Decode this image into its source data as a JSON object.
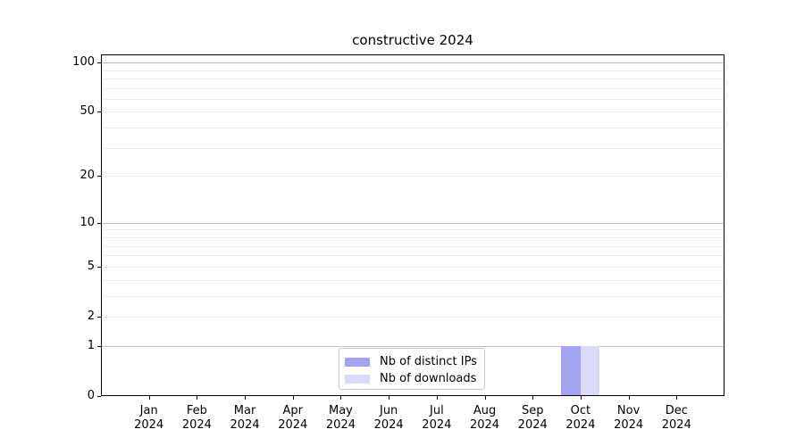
{
  "title": "constructive 2024",
  "colors": {
    "background": "#ffffff",
    "axis": "#000000",
    "grid_major": "#c2c2c2",
    "grid_minor": "#ebebeb",
    "legend_border": "#c9c9c9",
    "bar_distinct_ips": "#a4a4f3",
    "bar_downloads": "#dbdbf9"
  },
  "legend": {
    "position": "lower center"
  },
  "chart_data": {
    "type": "bar",
    "title": "constructive 2024",
    "categories": [
      "Jan",
      "Feb",
      "Mar",
      "Apr",
      "May",
      "Jun",
      "Jul",
      "Aug",
      "Sep",
      "Oct",
      "Nov",
      "Dec"
    ],
    "x_year": "2024",
    "series": [
      {
        "name": "Nb of distinct IPs",
        "color": "#a4a4f3",
        "values": [
          0,
          0,
          0,
          0,
          0,
          0,
          0,
          0,
          0,
          1,
          0,
          0
        ]
      },
      {
        "name": "Nb of downloads",
        "color": "#dbdbf9",
        "values": [
          0,
          0,
          0,
          0,
          0,
          0,
          0,
          0,
          0,
          1,
          0,
          0
        ]
      }
    ],
    "yscale": "log1p",
    "ylim": [
      0,
      112
    ],
    "y_tick_labels": [
      100,
      50,
      20,
      10,
      5,
      2,
      1,
      0
    ],
    "y_major_grid": [
      1,
      10,
      100
    ],
    "y_minor_grid": [
      2,
      3,
      4,
      5,
      6,
      7,
      8,
      9,
      20,
      30,
      40,
      50,
      60,
      70,
      80,
      90
    ],
    "grid": true,
    "legend_position": "lower center"
  }
}
